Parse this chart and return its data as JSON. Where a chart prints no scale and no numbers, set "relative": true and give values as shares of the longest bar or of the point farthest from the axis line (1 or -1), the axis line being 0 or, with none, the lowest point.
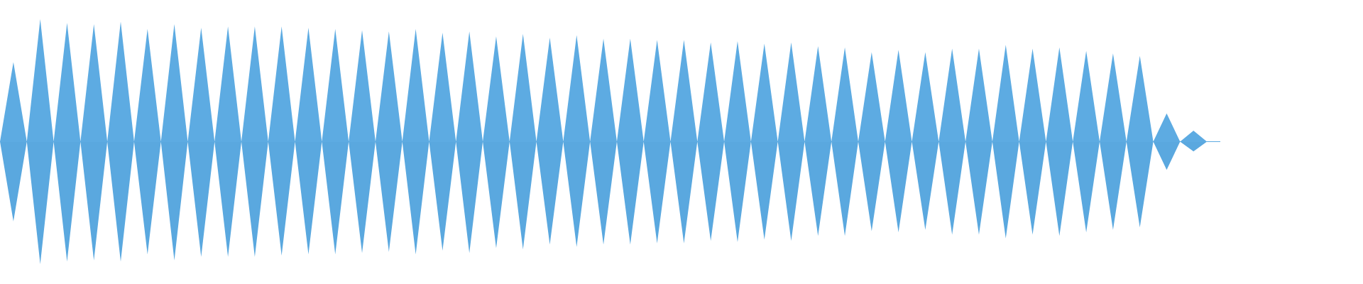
{
  "chart_data": {
    "type": "area",
    "relative": true,
    "categories": [
      null,
      null,
      null,
      null,
      null,
      null,
      null,
      null,
      null,
      null,
      null,
      null,
      null,
      null,
      null,
      null,
      null,
      null,
      null,
      null,
      null,
      null,
      null,
      null,
      null,
      null,
      null,
      null,
      null,
      null,
      null,
      null,
      null,
      null,
      null,
      null,
      null,
      null,
      null,
      null,
      null,
      null,
      null,
      null,
      null,
      null,
      null,
      null,
      null,
      null,
      null,
      null,
      null,
      null,
      null,
      null,
      null,
      null,
      null,
      null,
      null,
      null,
      null,
      null,
      null,
      null,
      null,
      null,
      null,
      null,
      null,
      null,
      null,
      null,
      null,
      null,
      null,
      null,
      null,
      null,
      null,
      null,
      null,
      null,
      null,
      null,
      null,
      null,
      null,
      null,
      null,
      null
    ],
    "series": [
      {
        "color": "#5dabe2",
        "values": [
          0,
          0.65,
          0,
          1,
          0,
          0.97,
          0,
          0.96,
          0,
          0.98,
          0,
          0.92,
          0,
          0.96,
          0,
          0.93,
          0,
          0.94,
          0,
          0.94,
          0,
          0.94,
          0,
          0.93,
          0,
          0.92,
          0,
          0.91,
          0,
          0.9,
          0,
          0.92,
          0,
          0.89,
          0,
          0.9,
          0,
          0.86,
          0,
          0.88,
          0,
          0.85,
          0,
          0.87,
          0,
          0.84,
          0,
          0.84,
          0,
          0.83,
          0,
          0.83,
          0,
          0.81,
          0,
          0.82,
          0,
          0.8,
          0,
          0.81,
          0,
          0.78,
          0,
          0.77,
          0,
          0.73,
          0,
          0.75,
          0,
          0.73,
          0,
          0.76,
          0,
          0.76,
          0,
          0.79,
          0,
          0.76,
          0,
          0.77,
          0,
          0.74,
          0,
          0.72,
          0,
          0.7,
          0,
          0.23,
          0,
          0.09,
          0,
          0
        ]
      },
      {
        "color": "#5aa8df",
        "values": [
          0,
          -0.65,
          0,
          -1,
          0,
          -0.98,
          0,
          -0.97,
          0,
          -0.98,
          0,
          -0.92,
          0,
          -0.97,
          0,
          -0.94,
          0,
          -0.94,
          0,
          -0.94,
          0,
          -0.93,
          0,
          -0.92,
          0,
          -0.92,
          0,
          -0.91,
          0,
          -0.9,
          0,
          -0.92,
          0,
          -0.89,
          0,
          -0.91,
          0,
          -0.87,
          0,
          -0.88,
          0,
          -0.84,
          0,
          -0.86,
          0,
          -0.84,
          0,
          -0.84,
          0,
          -0.83,
          0,
          -0.83,
          0,
          -0.81,
          0,
          -0.82,
          0,
          -0.8,
          0,
          -0.81,
          0,
          -0.77,
          0,
          -0.77,
          0,
          -0.73,
          0,
          -0.74,
          0,
          -0.72,
          0,
          -0.76,
          0,
          -0.76,
          0,
          -0.79,
          0,
          -0.76,
          0,
          -0.77,
          0,
          -0.74,
          0,
          -0.72,
          0,
          -0.7,
          0,
          -0.23,
          0,
          -0.08,
          0,
          0
        ]
      }
    ]
  }
}
